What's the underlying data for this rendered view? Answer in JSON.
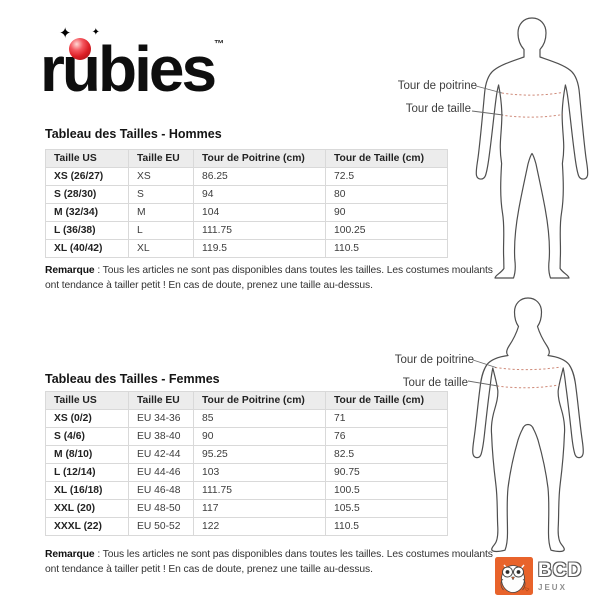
{
  "logo": {
    "part1": "r",
    "part2": "u",
    "part3": "bies",
    "tm": "™"
  },
  "diagram_labels": {
    "chest": "Tour de poitrine",
    "waist": "Tour de taille"
  },
  "men_section": {
    "title": "Tableau des Tailles - Hommes",
    "columns": [
      "Taille US",
      "Taille EU",
      "Tour de Poitrine (cm)",
      "Tour de Taille (cm)"
    ],
    "rows": [
      [
        "XS (26/27)",
        "XS",
        "86.25",
        "72.5"
      ],
      [
        "S (28/30)",
        "S",
        "94",
        "80"
      ],
      [
        "M (32/34)",
        "M",
        "104",
        "90"
      ],
      [
        "L (36/38)",
        "L",
        "111.75",
        "100.25"
      ],
      [
        "XL (40/42)",
        "XL",
        "119.5",
        "110.5"
      ]
    ],
    "remark_label": "Remarque",
    "remark_text": " : Tous les articles ne sont pas disponibles dans toutes les tailles. Les costumes moulants ont tendance à tailler petit ! En cas de doute, prenez une taille au-dessus."
  },
  "women_section": {
    "title": "Tableau des Tailles - Femmes",
    "columns": [
      "Taille US",
      "Taille EU",
      "Tour de Poitrine (cm)",
      "Tour de Taille (cm)"
    ],
    "rows": [
      [
        "XS (0/2)",
        "EU 34-36",
        "85",
        "71"
      ],
      [
        "S (4/6)",
        "EU 38-40",
        "90",
        "76"
      ],
      [
        "M (8/10)",
        "EU 42-44",
        "95.25",
        "82.5"
      ],
      [
        "L (12/14)",
        "EU 44-46",
        "103",
        "90.75"
      ],
      [
        "XL (16/18)",
        "EU 46-48",
        "111.75",
        "100.5"
      ],
      [
        "XXL (20)",
        "EU 48-50",
        "117",
        "105.5"
      ],
      [
        "XXXL (22)",
        "EU 50-52",
        "122",
        "110.5"
      ]
    ],
    "remark_label": "Remarque",
    "remark_text": " : Tous les articles ne sont pas disponibles dans toutes les tailles. Les costumes moulants ont tendance à tailler petit ! En cas de doute, prenez une taille au-dessus."
  },
  "footer_logo": {
    "line1": "BCD",
    "line2": "JEUX"
  },
  "colors": {
    "logo_ball_red": "#dc1f26",
    "bcd_orange": "#e8632b",
    "measure_dash": "#cf8a79",
    "table_header_bg": "#ececec",
    "table_border": "#d9d9d9"
  }
}
